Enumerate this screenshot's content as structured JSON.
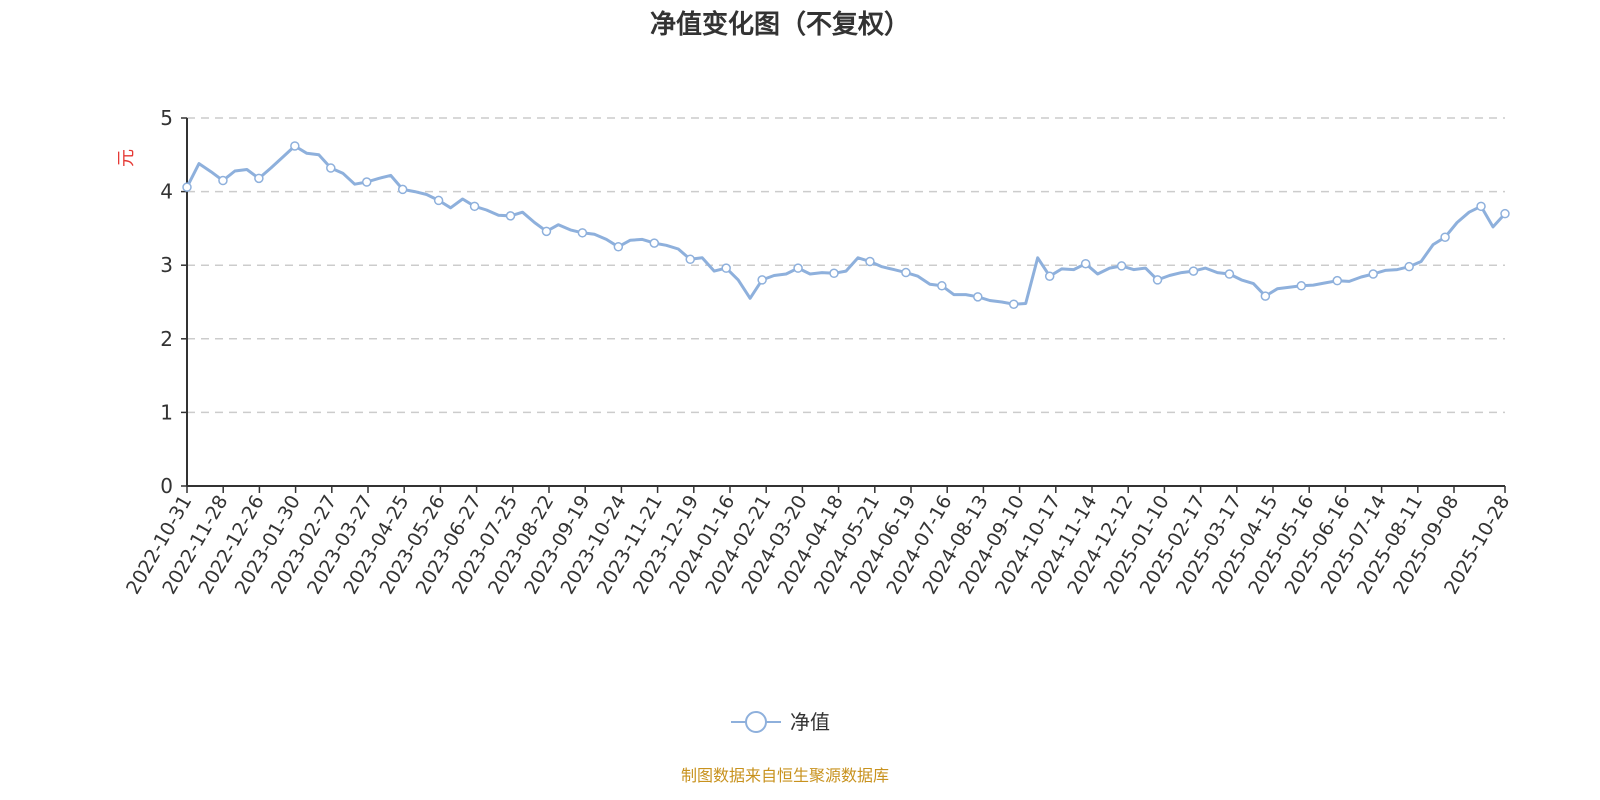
{
  "chart_data": {
    "type": "line",
    "title": "净值变化图（不复权）",
    "ylabel": "元",
    "xlabel": "",
    "ylim": [
      0,
      5
    ],
    "yticks": [
      0,
      1,
      2,
      3,
      4,
      5
    ],
    "grid": true,
    "legend_position": "bottom-center",
    "x_tick_labels": [
      "2022-10-31",
      "2022-11-28",
      "2022-12-26",
      "2023-01-30",
      "2023-02-27",
      "2023-03-27",
      "2023-04-25",
      "2023-05-26",
      "2023-06-27",
      "2023-07-25",
      "2023-08-22",
      "2023-09-19",
      "2023-10-24",
      "2023-11-21",
      "2023-12-19",
      "2024-01-16",
      "2024-02-21",
      "2024-03-20",
      "2024-04-18",
      "2024-05-21",
      "2024-06-19",
      "2024-07-16",
      "2024-08-13",
      "2024-09-10",
      "2024-10-17",
      "2024-11-14",
      "2024-12-12",
      "2025-01-10",
      "2025-02-17",
      "2025-03-17",
      "2025-04-15",
      "2025-05-16",
      "2025-06-16",
      "2025-07-14",
      "2025-08-11",
      "2025-09-08",
      "2025-10-28"
    ],
    "series": [
      {
        "name": "净值",
        "color": "#8eb0dc",
        "values": [
          4.06,
          4.38,
          4.27,
          4.15,
          4.28,
          4.3,
          4.18,
          4.32,
          4.47,
          4.62,
          4.52,
          4.5,
          4.32,
          4.25,
          4.1,
          4.13,
          4.18,
          4.22,
          4.03,
          4.0,
          3.96,
          3.88,
          3.78,
          3.9,
          3.8,
          3.75,
          3.68,
          3.67,
          3.72,
          3.58,
          3.46,
          3.55,
          3.48,
          3.44,
          3.42,
          3.35,
          3.25,
          3.34,
          3.35,
          3.3,
          3.27,
          3.22,
          3.08,
          3.1,
          2.92,
          2.96,
          2.8,
          2.55,
          2.8,
          2.86,
          2.88,
          2.96,
          2.88,
          2.9,
          2.89,
          2.92,
          3.1,
          3.05,
          2.98,
          2.94,
          2.9,
          2.85,
          2.74,
          2.72,
          2.6,
          2.6,
          2.57,
          2.52,
          2.5,
          2.47,
          2.48,
          3.1,
          2.85,
          2.95,
          2.94,
          3.02,
          2.88,
          2.96,
          2.99,
          2.94,
          2.96,
          2.8,
          2.86,
          2.9,
          2.92,
          2.96,
          2.9,
          2.88,
          2.8,
          2.75,
          2.58,
          2.68,
          2.7,
          2.72,
          2.73,
          2.76,
          2.79,
          2.78,
          2.84,
          2.88,
          2.93,
          2.94,
          2.98,
          3.05,
          3.28,
          3.38,
          3.58,
          3.72,
          3.8,
          3.52,
          3.7
        ]
      }
    ]
  },
  "legend": {
    "label": "净值"
  },
  "footer": {
    "source": "制图数据来自恒生聚源数据库"
  },
  "colors": {
    "axis_label": "#e53935",
    "line": "#8eb0dc",
    "source": "#c8921e"
  }
}
